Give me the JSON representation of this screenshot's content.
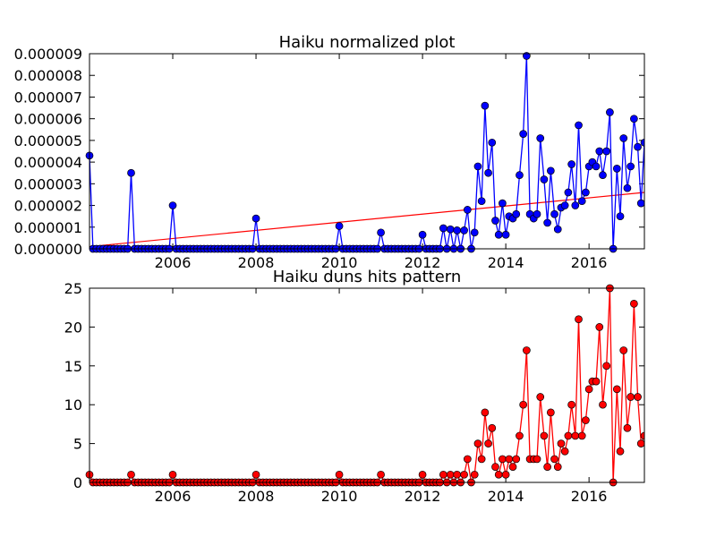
{
  "chart_data": [
    {
      "type": "line",
      "title": "Haiku normalized plot",
      "xlabel": "",
      "ylabel": "",
      "x_tick_labels": [
        "2006",
        "2008",
        "2010",
        "2012",
        "2014",
        "2016"
      ],
      "y_tick_labels": [
        "0.000000",
        "0.000001",
        "0.000002",
        "0.000003",
        "0.000004",
        "0.000005",
        "0.000006",
        "0.000007",
        "0.000008",
        "0.000009"
      ],
      "xlim": [
        2004.0,
        2017.33
      ],
      "ylim": [
        0,
        9e-06
      ],
      "grid": false,
      "colors": {
        "line": "#0000ff",
        "marker": "#0000ff",
        "trend": "#ff0000"
      },
      "series": [
        {
          "points": [
            [
              2004.0,
              4.3e-06
            ],
            [
              2005.0,
              3.5e-06
            ],
            [
              2006.0,
              2e-06
            ],
            [
              2008.0,
              1.4e-06
            ],
            [
              2010.0,
              1.05e-06
            ],
            [
              2011.0,
              7.5e-07
            ],
            [
              2012.0,
              6.5e-07
            ],
            [
              2012.5,
              9.5e-07
            ],
            [
              2012.67,
              9e-07
            ],
            [
              2012.83,
              8.5e-07
            ],
            [
              2013.0,
              8.5e-07
            ],
            [
              2013.08,
              1.8e-06
            ],
            [
              2013.17,
              0.0
            ],
            [
              2013.25,
              7.5e-07
            ],
            [
              2013.33,
              3.8e-06
            ],
            [
              2013.42,
              2.2e-06
            ],
            [
              2013.5,
              6.6e-06
            ],
            [
              2013.58,
              3.5e-06
            ],
            [
              2013.67,
              4.9e-06
            ],
            [
              2013.75,
              1.3e-06
            ],
            [
              2013.83,
              6.5e-07
            ],
            [
              2013.92,
              2.1e-06
            ],
            [
              2014.0,
              6.5e-07
            ],
            [
              2014.08,
              1.5e-06
            ],
            [
              2014.17,
              1.4e-06
            ],
            [
              2014.25,
              1.6e-06
            ],
            [
              2014.33,
              3.4e-06
            ],
            [
              2014.42,
              5.3e-06
            ],
            [
              2014.5,
              8.9e-06
            ],
            [
              2014.58,
              1.6e-06
            ],
            [
              2014.67,
              1.4e-06
            ],
            [
              2014.75,
              1.6e-06
            ],
            [
              2014.83,
              5.1e-06
            ],
            [
              2014.92,
              3.2e-06
            ],
            [
              2015.0,
              1.2e-06
            ],
            [
              2015.08,
              3.6e-06
            ],
            [
              2015.17,
              1.6e-06
            ],
            [
              2015.25,
              9e-07
            ],
            [
              2015.33,
              1.9e-06
            ],
            [
              2015.42,
              2e-06
            ],
            [
              2015.5,
              2.6e-06
            ],
            [
              2015.58,
              3.9e-06
            ],
            [
              2015.67,
              2e-06
            ],
            [
              2015.75,
              5.7e-06
            ],
            [
              2015.83,
              2.2e-06
            ],
            [
              2015.92,
              2.6e-06
            ],
            [
              2016.0,
              3.8e-06
            ],
            [
              2016.08,
              4e-06
            ],
            [
              2016.17,
              3.8e-06
            ],
            [
              2016.25,
              4.5e-06
            ],
            [
              2016.33,
              3.4e-06
            ],
            [
              2016.42,
              4.5e-06
            ],
            [
              2016.5,
              6.3e-06
            ],
            [
              2016.58,
              0.0
            ],
            [
              2016.67,
              3.7e-06
            ],
            [
              2016.75,
              1.5e-06
            ],
            [
              2016.83,
              5.1e-06
            ],
            [
              2016.92,
              2.8e-06
            ],
            [
              2017.0,
              3.8e-06
            ],
            [
              2017.08,
              6e-06
            ],
            [
              2017.17,
              4.7e-06
            ],
            [
              2017.25,
              2.1e-06
            ],
            [
              2017.33,
              4.9e-06
            ]
          ],
          "baseline_zero_months_from": 2004.0,
          "baseline_zero_months_to": 2013.0
        }
      ],
      "trend_line": {
        "x": [
          2004.0,
          2017.33
        ],
        "y": [
          1e-07,
          2.6e-06
        ]
      }
    },
    {
      "type": "line",
      "title": "Haiku duns hits pattern",
      "xlabel": "",
      "ylabel": "",
      "x_tick_labels": [
        "2006",
        "2008",
        "2010",
        "2012",
        "2014",
        "2016"
      ],
      "y_tick_labels": [
        "0",
        "5",
        "10",
        "15",
        "20",
        "25"
      ],
      "xlim": [
        2004.0,
        2017.33
      ],
      "ylim": [
        0,
        25
      ],
      "grid": false,
      "colors": {
        "line": "#ff0000",
        "marker": "#ff0000"
      },
      "series": [
        {
          "points": [
            [
              2004.0,
              1
            ],
            [
              2005.0,
              1
            ],
            [
              2006.0,
              1
            ],
            [
              2008.0,
              1
            ],
            [
              2010.0,
              1
            ],
            [
              2011.0,
              1
            ],
            [
              2012.0,
              1
            ],
            [
              2012.5,
              1
            ],
            [
              2012.67,
              1
            ],
            [
              2012.83,
              1
            ],
            [
              2013.0,
              1
            ],
            [
              2013.08,
              3
            ],
            [
              2013.17,
              0
            ],
            [
              2013.25,
              1
            ],
            [
              2013.33,
              5
            ],
            [
              2013.42,
              3
            ],
            [
              2013.5,
              9
            ],
            [
              2013.58,
              5
            ],
            [
              2013.67,
              7
            ],
            [
              2013.75,
              2
            ],
            [
              2013.83,
              1
            ],
            [
              2013.92,
              3
            ],
            [
              2014.0,
              1
            ],
            [
              2014.08,
              3
            ],
            [
              2014.17,
              2
            ],
            [
              2014.25,
              3
            ],
            [
              2014.33,
              6
            ],
            [
              2014.42,
              10
            ],
            [
              2014.5,
              17
            ],
            [
              2014.58,
              3
            ],
            [
              2014.67,
              3
            ],
            [
              2014.75,
              3
            ],
            [
              2014.83,
              11
            ],
            [
              2014.92,
              6
            ],
            [
              2015.0,
              2
            ],
            [
              2015.08,
              9
            ],
            [
              2015.17,
              3
            ],
            [
              2015.25,
              2
            ],
            [
              2015.33,
              5
            ],
            [
              2015.42,
              4
            ],
            [
              2015.5,
              6
            ],
            [
              2015.58,
              10
            ],
            [
              2015.67,
              6
            ],
            [
              2015.75,
              21
            ],
            [
              2015.83,
              6
            ],
            [
              2015.92,
              8
            ],
            [
              2016.0,
              12
            ],
            [
              2016.08,
              13
            ],
            [
              2016.17,
              13
            ],
            [
              2016.25,
              20
            ],
            [
              2016.33,
              10
            ],
            [
              2016.42,
              15
            ],
            [
              2016.5,
              25
            ],
            [
              2016.58,
              0
            ],
            [
              2016.67,
              12
            ],
            [
              2016.75,
              4
            ],
            [
              2016.83,
              17
            ],
            [
              2016.92,
              7
            ],
            [
              2017.0,
              11
            ],
            [
              2017.08,
              23
            ],
            [
              2017.17,
              11
            ],
            [
              2017.25,
              5
            ],
            [
              2017.33,
              6
            ]
          ],
          "baseline_zero_months_from": 2004.0,
          "baseline_zero_months_to": 2013.0
        }
      ]
    }
  ]
}
